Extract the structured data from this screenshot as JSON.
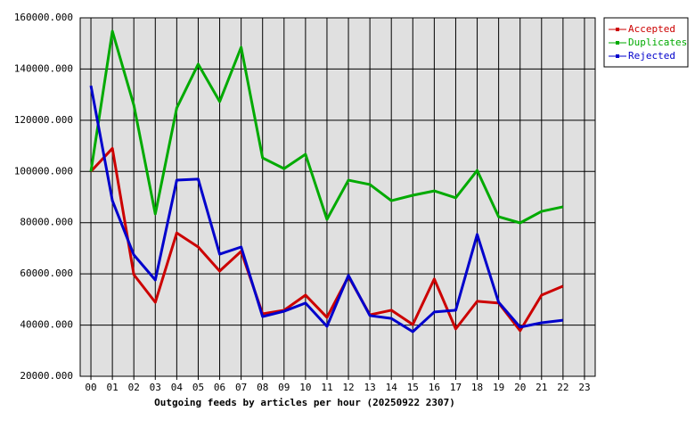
{
  "chart_data": {
    "type": "line",
    "xlabel": "Outgoing feeds by articles per hour (20250922 2307)",
    "categories": [
      "00",
      "01",
      "02",
      "03",
      "04",
      "05",
      "06",
      "07",
      "08",
      "09",
      "10",
      "11",
      "12",
      "13",
      "14",
      "15",
      "16",
      "17",
      "18",
      "19",
      "20",
      "21",
      "22",
      "23"
    ],
    "series": [
      {
        "name": "Accepted",
        "color": "#cc0000",
        "values": [
          100000,
          109000,
          59700,
          48900,
          76000,
          70500,
          61100,
          68800,
          44400,
          45800,
          51700,
          43000,
          59000,
          44000,
          45800,
          40200,
          58000,
          38500,
          49300,
          48600,
          37800,
          51700,
          55200,
          null
        ]
      },
      {
        "name": "Duplicates",
        "color": "#00aa00",
        "values": [
          100000,
          154800,
          125900,
          83400,
          124800,
          141900,
          127300,
          148500,
          105300,
          101100,
          106700,
          81300,
          96600,
          94900,
          88600,
          90700,
          92400,
          89700,
          100400,
          82300,
          79900,
          84400,
          86200,
          null
        ]
      },
      {
        "name": "Rejected",
        "color": "#0000cc",
        "values": [
          133500,
          88600,
          67400,
          57600,
          96600,
          97000,
          67700,
          70500,
          43300,
          45400,
          48600,
          39500,
          59400,
          43700,
          42600,
          37400,
          45100,
          45800,
          75400,
          48900,
          39200,
          40900,
          41900,
          null
        ]
      }
    ],
    "ylim": [
      20000,
      160000
    ],
    "yticks": [
      {
        "value": 20000,
        "label": "20000.000"
      },
      {
        "value": 40000,
        "label": "40000.000"
      },
      {
        "value": 60000,
        "label": "60000.000"
      },
      {
        "value": 80000,
        "label": "80000.000"
      },
      {
        "value": 100000,
        "label": "100000.000"
      },
      {
        "value": 120000,
        "label": "120000.000"
      },
      {
        "value": 140000,
        "label": "140000.000"
      },
      {
        "value": 160000,
        "label": "160000.000"
      }
    ],
    "grid": true,
    "legend": "outside-right",
    "plot_background": "#e0e0e0"
  }
}
